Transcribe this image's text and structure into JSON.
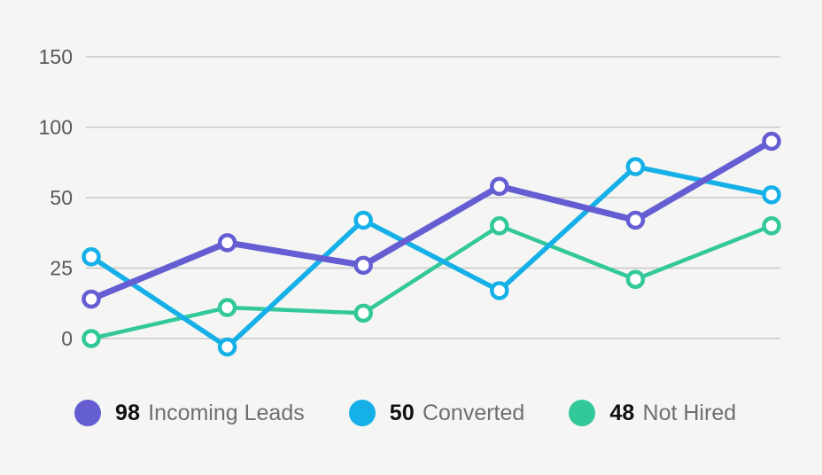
{
  "chart_data": {
    "type": "line",
    "title": "",
    "x_point_count": 6,
    "y_ticks": [
      0,
      25,
      50,
      100,
      150
    ],
    "y_tick_spacing": "equal",
    "grid": true,
    "legend_position": "bottom",
    "series": [
      {
        "name": "Incoming Leads",
        "legend_value": "98",
        "color": "#655ED3",
        "values": [
          14,
          34,
          26,
          58,
          42,
          90
        ]
      },
      {
        "name": "Converted",
        "legend_value": "50",
        "color": "#16B0E8",
        "values": [
          29,
          -3,
          42,
          17,
          72,
          52
        ]
      },
      {
        "name": "Not Hired",
        "legend_value": "48",
        "color": "#33C89A",
        "values": [
          0,
          11,
          9,
          40,
          21,
          40
        ]
      }
    ]
  },
  "colors": {
    "background": "#F5F5F3",
    "gridline": "#C8C8C6",
    "tick_label": "#58585A",
    "legend_value_text": "#111111",
    "legend_label_text": "#6F6F71",
    "marker_fill": "#FFFFFF"
  }
}
